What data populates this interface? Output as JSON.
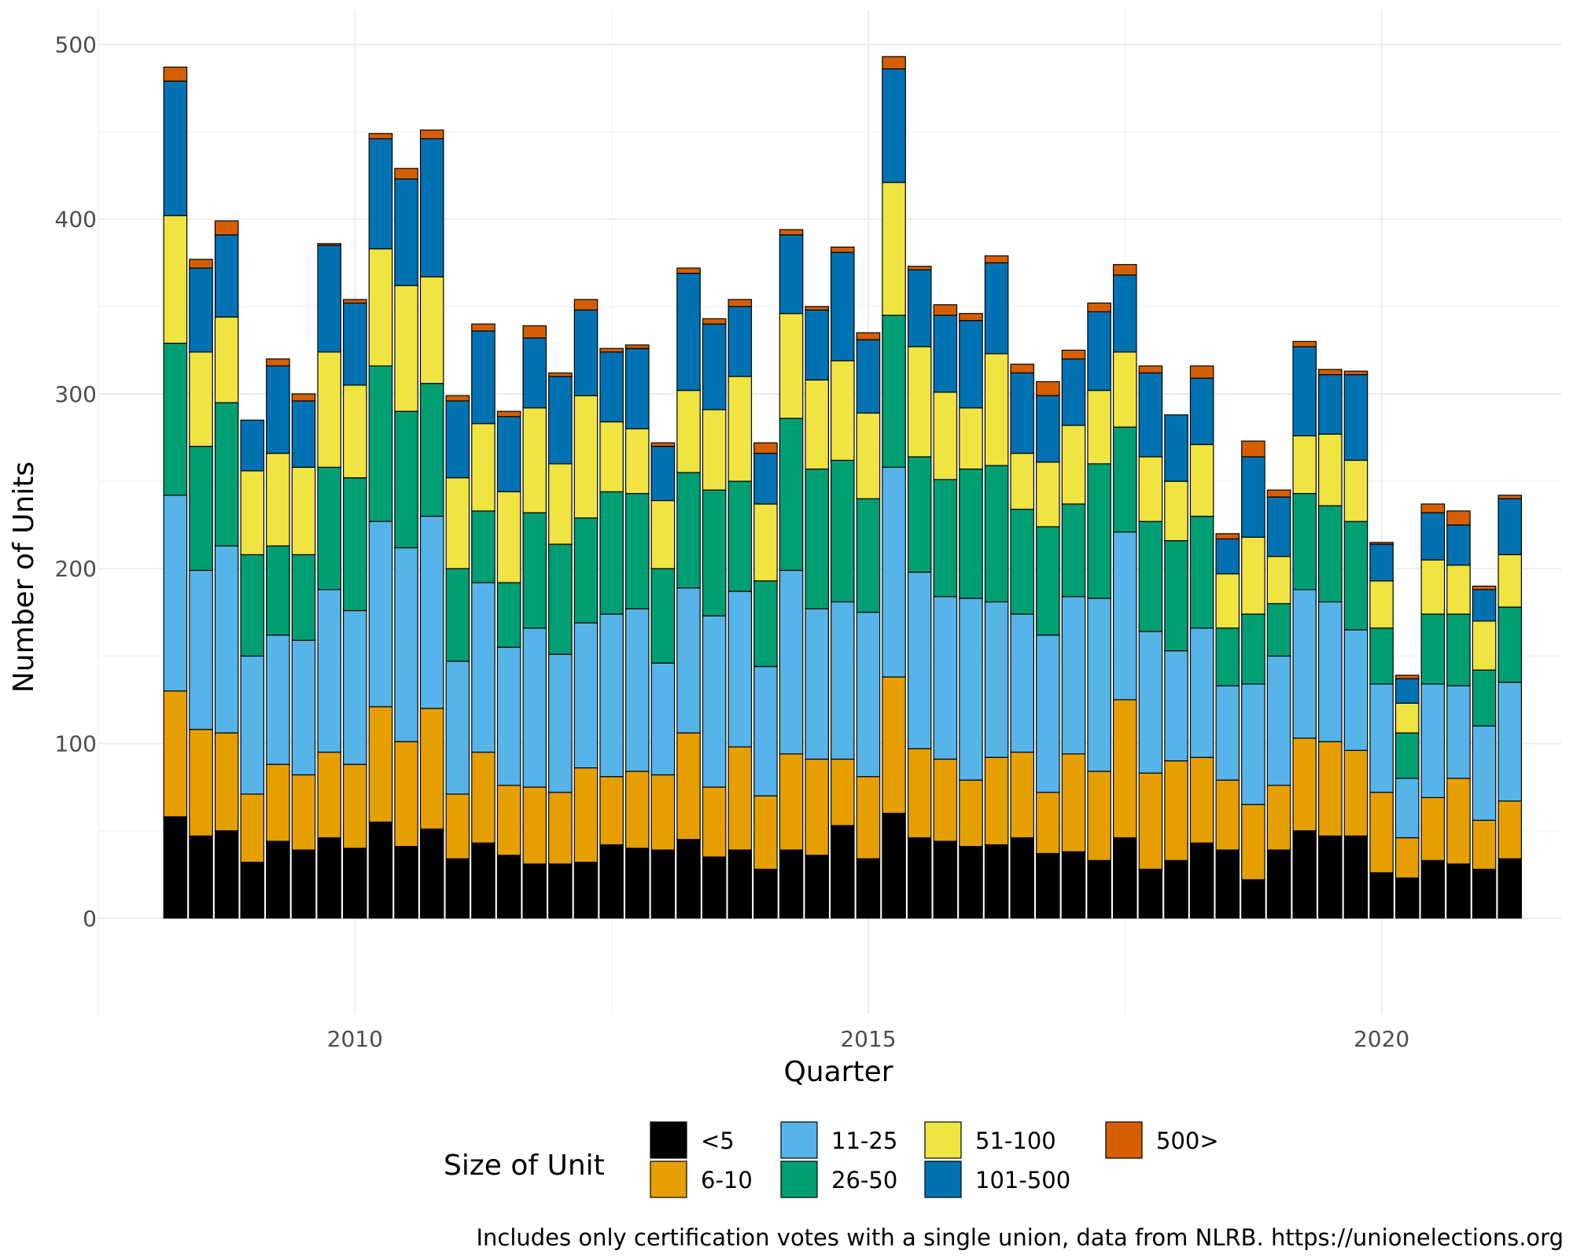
{
  "chart_data": {
    "type": "bar",
    "stacked": true,
    "title": "",
    "xlabel": "Quarter",
    "ylabel": "Number of Units",
    "ylim": [
      -55,
      520
    ],
    "yticks": [
      0,
      100,
      200,
      300,
      400,
      500
    ],
    "xlim": [
      2007.5,
      2021.75
    ],
    "xticks": [
      2010,
      2015,
      2020
    ],
    "grid": true,
    "legend": {
      "title": "Size of Unit",
      "position": "bottom"
    },
    "caption": "Includes only certification votes with a single union, data from NLRB. https://unionelections.org",
    "x": [
      2008.25,
      2008.5,
      2008.75,
      2009.0,
      2009.25,
      2009.5,
      2009.75,
      2010.0,
      2010.25,
      2010.5,
      2010.75,
      2011.0,
      2011.25,
      2011.5,
      2011.75,
      2012.0,
      2012.25,
      2012.5,
      2012.75,
      2013.0,
      2013.25,
      2013.5,
      2013.75,
      2014.0,
      2014.25,
      2014.5,
      2014.75,
      2015.0,
      2015.25,
      2015.5,
      2015.75,
      2016.0,
      2016.25,
      2016.5,
      2016.75,
      2017.0,
      2017.25,
      2017.5,
      2017.75,
      2018.0,
      2018.25,
      2018.5,
      2018.75,
      2019.0,
      2019.25,
      2019.5,
      2019.75,
      2020.0,
      2020.25,
      2020.5,
      2020.75,
      2021.0,
      2021.25
    ],
    "series": [
      {
        "name": "<5",
        "color": "#000000",
        "values": [
          58,
          47,
          50,
          32,
          44,
          39,
          46,
          40,
          55,
          41,
          51,
          34,
          43,
          36,
          31,
          31,
          32,
          42,
          40,
          39,
          45,
          35,
          39,
          28,
          39,
          36,
          53,
          34,
          60,
          46,
          44,
          41,
          42,
          46,
          37,
          38,
          33,
          46,
          28,
          33,
          43,
          39,
          22,
          39,
          50,
          47,
          47,
          26,
          23,
          33,
          31,
          28,
          34
        ]
      },
      {
        "name": "6-10",
        "color": "#E69F00",
        "values": [
          72,
          61,
          56,
          39,
          44,
          43,
          49,
          48,
          66,
          60,
          69,
          37,
          52,
          40,
          44,
          41,
          54,
          39,
          44,
          43,
          61,
          40,
          59,
          42,
          55,
          55,
          38,
          47,
          78,
          51,
          47,
          38,
          50,
          49,
          35,
          56,
          51,
          79,
          55,
          57,
          49,
          40,
          43,
          37,
          53,
          54,
          49,
          46,
          23,
          36,
          49,
          28,
          33
        ]
      },
      {
        "name": "11-25",
        "color": "#56B4E9",
        "values": [
          112,
          91,
          107,
          79,
          74,
          77,
          93,
          88,
          106,
          111,
          110,
          76,
          97,
          79,
          91,
          79,
          83,
          93,
          93,
          64,
          83,
          98,
          89,
          74,
          105,
          86,
          90,
          94,
          120,
          101,
          93,
          104,
          89,
          79,
          90,
          90,
          99,
          96,
          81,
          63,
          74,
          54,
          69,
          74,
          85,
          80,
          69,
          62,
          34,
          65,
          53,
          54,
          68
        ]
      },
      {
        "name": "26-50",
        "color": "#009E73",
        "values": [
          87,
          71,
          82,
          58,
          51,
          49,
          70,
          76,
          89,
          78,
          76,
          53,
          41,
          37,
          66,
          63,
          60,
          70,
          66,
          54,
          66,
          72,
          63,
          49,
          87,
          80,
          81,
          65,
          87,
          66,
          67,
          74,
          78,
          60,
          62,
          53,
          77,
          60,
          63,
          63,
          64,
          33,
          40,
          30,
          55,
          55,
          62,
          32,
          26,
          40,
          41,
          32,
          43
        ]
      },
      {
        "name": "51-100",
        "color": "#F0E442",
        "values": [
          73,
          54,
          49,
          48,
          53,
          50,
          66,
          53,
          67,
          72,
          61,
          52,
          50,
          52,
          60,
          46,
          70,
          40,
          37,
          39,
          47,
          46,
          60,
          44,
          60,
          51,
          57,
          49,
          76,
          63,
          50,
          35,
          64,
          32,
          37,
          45,
          42,
          43,
          37,
          34,
          41,
          31,
          44,
          27,
          33,
          41,
          35,
          27,
          17,
          31,
          28,
          28,
          30
        ]
      },
      {
        "name": "101-500",
        "color": "#0072B2",
        "values": [
          77,
          48,
          47,
          29,
          50,
          38,
          61,
          47,
          63,
          61,
          79,
          44,
          53,
          43,
          40,
          50,
          49,
          40,
          46,
          31,
          67,
          49,
          40,
          29,
          45,
          40,
          62,
          42,
          65,
          44,
          44,
          50,
          52,
          46,
          38,
          38,
          45,
          44,
          48,
          38,
          38,
          20,
          46,
          34,
          51,
          34,
          49,
          21,
          14,
          27,
          23,
          18,
          32
        ]
      },
      {
        "name": "500>",
        "color": "#D55E00",
        "values": [
          8,
          5,
          8,
          0,
          4,
          4,
          1,
          2,
          3,
          6,
          5,
          3,
          4,
          3,
          7,
          2,
          6,
          2,
          2,
          2,
          3,
          3,
          4,
          6,
          3,
          2,
          3,
          4,
          7,
          2,
          6,
          4,
          4,
          5,
          8,
          5,
          5,
          6,
          4,
          0,
          7,
          3,
          9,
          4,
          3,
          3,
          2,
          1,
          2,
          5,
          8,
          2,
          2
        ]
      }
    ]
  }
}
